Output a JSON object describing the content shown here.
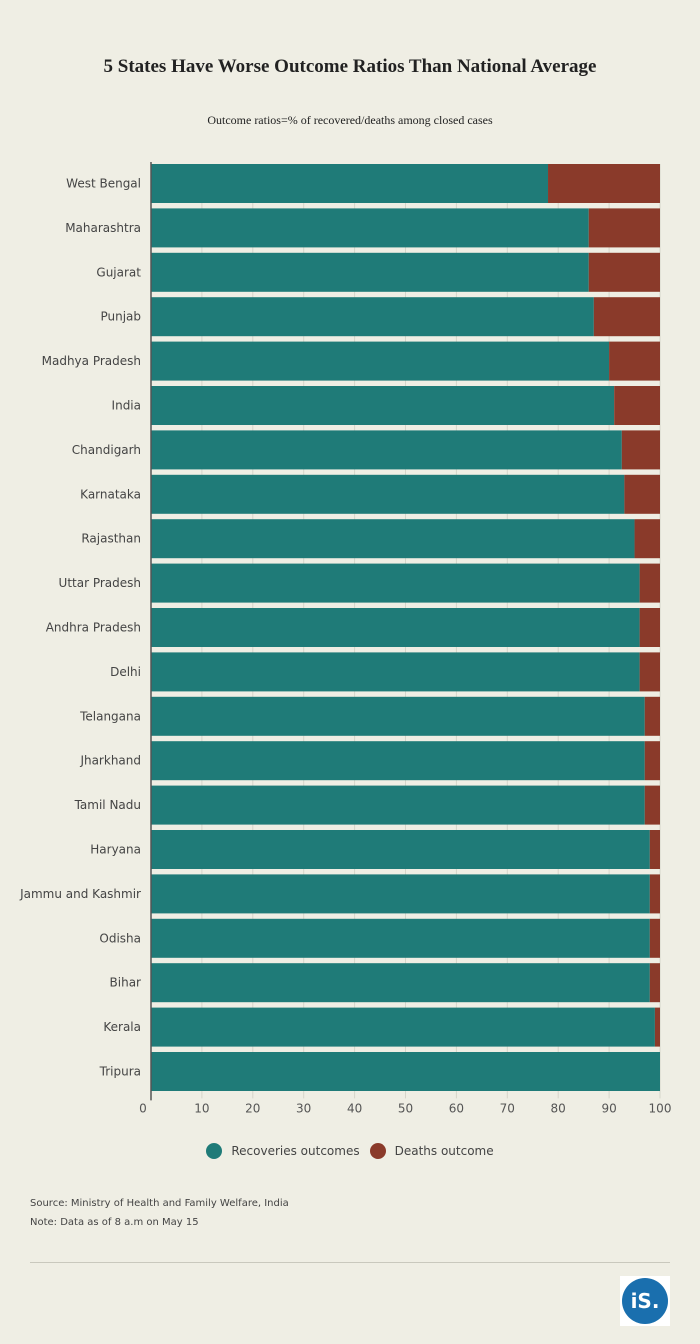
{
  "chart_data": {
    "type": "bar",
    "orientation": "horizontal",
    "stacked": true,
    "title": "5 States Have Worse Outcome Ratios Than National Average",
    "subtitle": "Outcome ratios=% of recovered/deaths among closed cases",
    "categories": [
      "West Bengal",
      "Maharashtra",
      "Gujarat",
      "Punjab",
      "Madhya Pradesh",
      "India",
      "Chandigarh",
      "Karnataka",
      "Rajasthan",
      "Uttar Pradesh",
      "Andhra Pradesh",
      "Delhi",
      "Telangana",
      "Jharkhand",
      "Tamil Nadu",
      "Haryana",
      "Jammu and Kashmir",
      "Odisha",
      "Bihar",
      "Kerala",
      "Tripura"
    ],
    "series": [
      {
        "name": "Recoveries outcomes",
        "color": "#1f7b78",
        "values": [
          78,
          86,
          86,
          87,
          90,
          91,
          92.5,
          93,
          95,
          96,
          96,
          96,
          97,
          97,
          97,
          98,
          98,
          98,
          98,
          99,
          100
        ]
      },
      {
        "name": "Deaths outcome",
        "color": "#8a3a2a",
        "values": [
          22,
          14,
          14,
          13,
          10,
          9,
          7.5,
          7,
          5,
          4,
          4,
          4,
          3,
          3,
          3,
          2,
          2,
          2,
          2,
          1,
          0
        ]
      }
    ],
    "xlim": [
      0,
      100
    ],
    "xticks": [
      "0",
      "10",
      "20",
      "30",
      "40",
      "50",
      "60",
      "70",
      "80",
      "90",
      "100"
    ],
    "legend_position": "bottom",
    "grid": true
  },
  "footer": {
    "source": "Source: Ministry of Health and Family Welfare, India",
    "note": "Note: Data as of 8 a.m on May 15"
  },
  "logo": {
    "text": "iS."
  }
}
